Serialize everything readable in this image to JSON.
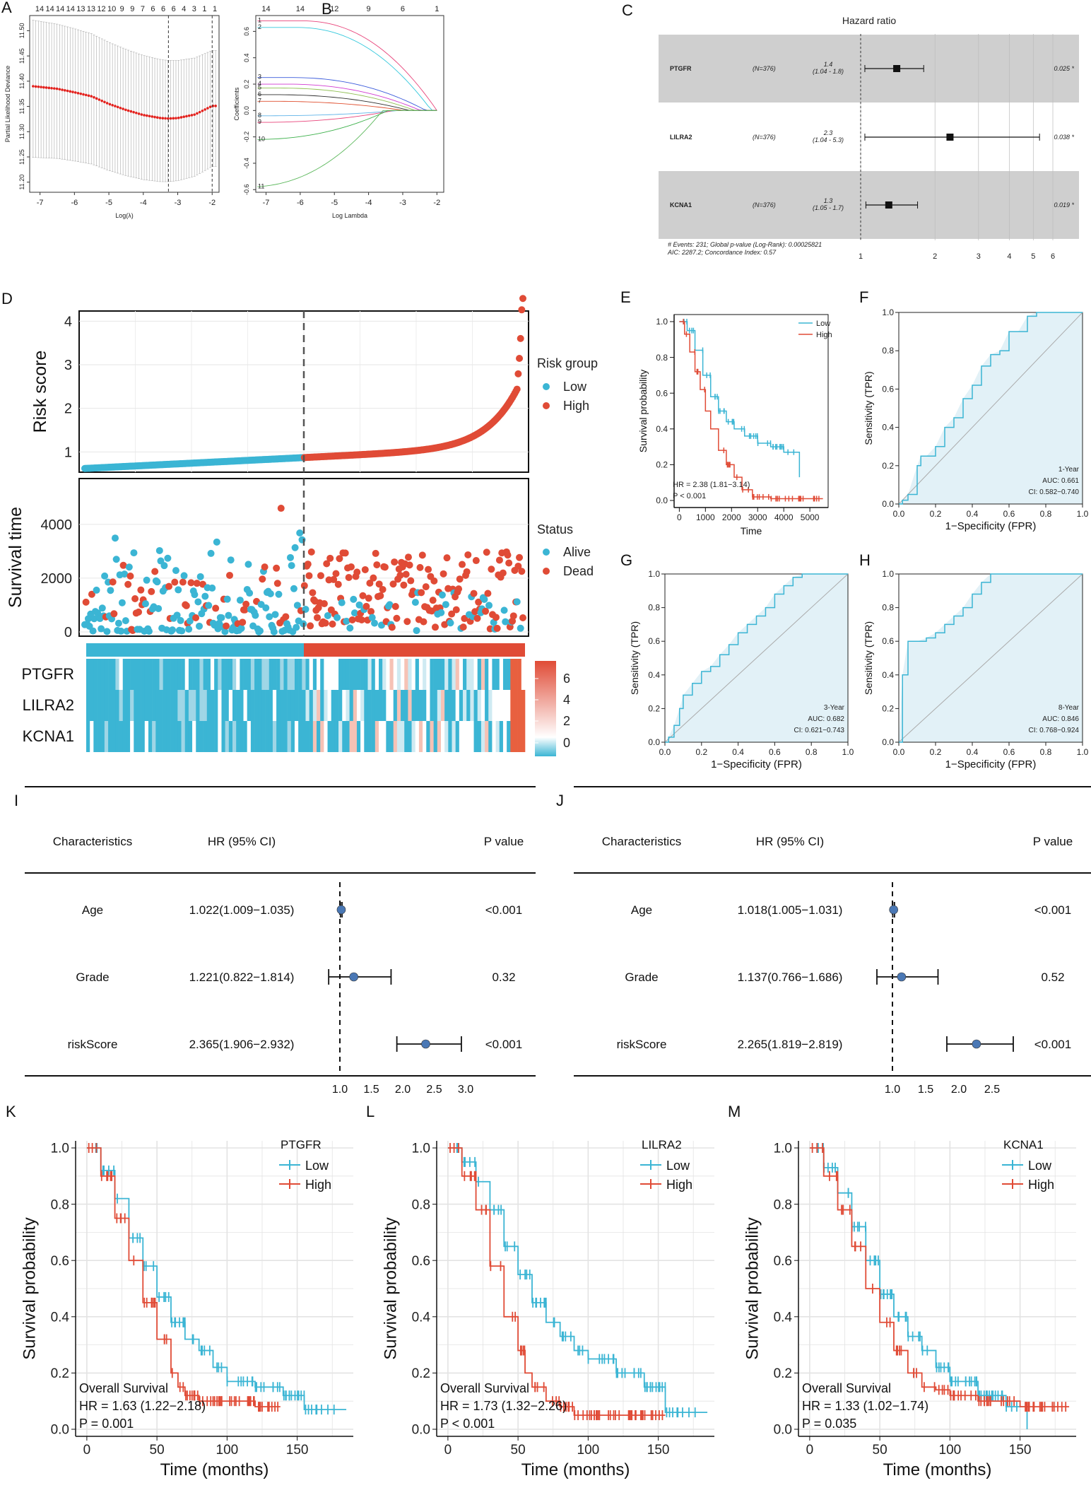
{
  "panels": {
    "A": "A",
    "B": "B",
    "C": "C",
    "D": "D",
    "E": "E",
    "F": "F",
    "G": "G",
    "H": "H",
    "I": "I",
    "J": "J",
    "K": "K",
    "L": "L",
    "M": "M"
  },
  "colors": {
    "low": "#3bb5d4",
    "high": "#e04b36",
    "cv": "#e2201c",
    "forest": "#4a78b5"
  },
  "chart_data": [
    {
      "id": "A",
      "type": "line",
      "xlabel": "Log(λ)",
      "ylabel": "Partial Likelihood Deviance",
      "xlim": [
        -7.3,
        -1.8
      ],
      "ylim": [
        11.18,
        11.53
      ],
      "xticks": [
        "-7",
        "-6",
        "-5",
        "-4",
        "-3",
        "-2"
      ],
      "yticks": [
        "11.20",
        "11.25",
        "11.30",
        "11.35",
        "11.40",
        "11.45",
        "11.50"
      ],
      "top_counts": [
        "14",
        "14",
        "14",
        "14",
        "13",
        "13",
        "12",
        "10",
        "9",
        "9",
        "7",
        "6",
        "6",
        "6",
        "4",
        "3",
        "1",
        "1"
      ],
      "lambda_min": -3.27,
      "lambda_1se": -2.0,
      "x": [
        -7.2,
        -6.5,
        -6.0,
        -5.5,
        -5.0,
        -4.5,
        -4.0,
        -3.5,
        -3.27,
        -3.0,
        -2.5,
        -2.0
      ],
      "y": [
        11.39,
        11.385,
        11.378,
        11.37,
        11.355,
        11.343,
        11.333,
        11.327,
        11.326,
        11.327,
        11.334,
        11.351
      ]
    },
    {
      "id": "B",
      "type": "line",
      "xlabel": "Log Lambda",
      "ylabel": "Coefficients",
      "xlim": [
        -7.3,
        -1.8
      ],
      "ylim": [
        -0.62,
        0.72
      ],
      "xticks": [
        "-7",
        "-6",
        "-5",
        "-4",
        "-3",
        "-2"
      ],
      "yticks": [
        "-0.6",
        "-0.4",
        "-0.2",
        "0.0",
        "0.2",
        "0.4",
        "0.6"
      ],
      "top_counts": [
        "14",
        "14",
        "12",
        "9",
        "6",
        "1"
      ],
      "series": [
        {
          "name": "1",
          "start": 0.68,
          "end": 0.0,
          "color": "#e8437a"
        },
        {
          "name": "2",
          "start": 0.63,
          "end": 0.0,
          "color": "#33c8dc"
        },
        {
          "name": "3",
          "start": 0.25,
          "end": 0.0,
          "color": "#3b5bdb"
        },
        {
          "name": "4",
          "start": 0.2,
          "end": 0.0,
          "color": "#d13ad1"
        },
        {
          "name": "5",
          "start": 0.17,
          "end": 0.0,
          "color": "#8fbf52"
        },
        {
          "name": "6",
          "start": 0.12,
          "end": 0.0,
          "color": "#2e2e2e"
        },
        {
          "name": "7",
          "start": 0.07,
          "end": 0.0,
          "color": "#e05030"
        },
        {
          "name": "8",
          "start": -0.04,
          "end": 0.0,
          "color": "#5fb3e8"
        },
        {
          "name": "9",
          "start": -0.09,
          "end": 0.0,
          "color": "#e8437a"
        },
        {
          "name": "10",
          "start": -0.22,
          "end": 0.0,
          "color": "#3cb04a"
        },
        {
          "name": "11",
          "start": -0.58,
          "end": 0.0,
          "color": "#5cb85c"
        }
      ]
    },
    {
      "id": "C",
      "type": "forest",
      "title": "Hazard ratio",
      "rows": [
        {
          "name": "PTGFR",
          "n": "(N=376)",
          "hr": "1.4",
          "ci": "(1.04 - 1.8)",
          "p": "0.025 *",
          "est": 1.4,
          "lo": 1.04,
          "hi": 1.8
        },
        {
          "name": "LILRA2",
          "n": "(N=376)",
          "hr": "2.3",
          "ci": "(1.04 - 5.3)",
          "p": "0.038 *",
          "est": 2.3,
          "lo": 1.04,
          "hi": 5.3
        },
        {
          "name": "KCNA1",
          "n": "(N=376)",
          "hr": "1.3",
          "ci": "(1.05 - 1.7)",
          "p": "0.019 *",
          "est": 1.3,
          "lo": 1.05,
          "hi": 1.7
        }
      ],
      "footer1": "# Events: 231; Global p-value (Log-Rank): 0.00025821",
      "footer2": "AIC: 2287.2; Concordance Index: 0.57",
      "xticks": [
        "1",
        "2",
        "3",
        "4",
        "5",
        "6"
      ]
    },
    {
      "id": "D",
      "type": "scatter",
      "ylabel_top": "Risk score",
      "ylabel_mid": "Survival time",
      "legend_top_title": "Risk group",
      "legend_top": [
        "Low",
        "High"
      ],
      "legend_mid_title": "Status",
      "legend_mid": [
        "Alive",
        "Dead"
      ],
      "risk_yticks": [
        "1",
        "2",
        "3",
        "4"
      ],
      "time_yticks": [
        "0",
        "2000",
        "4000"
      ],
      "genes": [
        "PTGFR",
        "LILRA2",
        "KCNA1"
      ],
      "scale_ticks": [
        "6",
        "4",
        "2",
        "0"
      ],
      "n_low": 188,
      "n_high": 188
    },
    {
      "id": "E",
      "type": "line",
      "xlabel": "Time",
      "ylabel": "Survival probability",
      "legend": [
        "Low",
        "High"
      ],
      "hr_text": "HR = 2.38 (1.81−3.14)",
      "p_text": "P < 0.001",
      "xticks": [
        "0",
        "1000",
        "2000",
        "3000",
        "4000",
        "5000"
      ],
      "yticks": [
        "0.0",
        "0.2",
        "0.4",
        "0.6",
        "0.8",
        "1.0"
      ],
      "low": {
        "x": [
          0,
          300,
          600,
          900,
          1200,
          1500,
          1800,
          2100,
          2500,
          3000,
          3500,
          4000,
          4600
        ],
        "y": [
          1.0,
          0.95,
          0.84,
          0.7,
          0.58,
          0.5,
          0.44,
          0.4,
          0.36,
          0.32,
          0.3,
          0.27,
          0.13
        ]
      },
      "high": {
        "x": [
          0,
          200,
          400,
          600,
          800,
          1000,
          1200,
          1500,
          1800,
          2100,
          2400,
          2800,
          3500,
          5500
        ],
        "y": [
          1.0,
          0.93,
          0.83,
          0.72,
          0.62,
          0.5,
          0.4,
          0.28,
          0.2,
          0.13,
          0.06,
          0.02,
          0.01,
          0.01
        ]
      }
    },
    {
      "id": "F",
      "type": "roc",
      "label": "1-Year",
      "auc": "AUC: 0.661",
      "ci": "CI: 0.582−0.740",
      "xlabel": "1−Specificity (FPR)",
      "ylabel": "Sensitivity (TPR)",
      "ticks": [
        "0.0",
        "0.2",
        "0.4",
        "0.6",
        "0.8",
        "1.0"
      ],
      "fpr": [
        0,
        0.02,
        0.05,
        0.1,
        0.12,
        0.15,
        0.2,
        0.25,
        0.3,
        0.35,
        0.4,
        0.45,
        0.5,
        0.55,
        0.6,
        0.65,
        0.7,
        0.75,
        0.8,
        1.0
      ],
      "tpr": [
        0,
        0.02,
        0.05,
        0.2,
        0.25,
        0.25,
        0.3,
        0.4,
        0.45,
        0.55,
        0.62,
        0.72,
        0.78,
        0.8,
        0.9,
        0.9,
        0.98,
        1.0,
        1.0,
        1.0
      ]
    },
    {
      "id": "G",
      "type": "roc",
      "label": "3-Year",
      "auc": "AUC: 0.682",
      "ci": "CI: 0.621−0.743",
      "xlabel": "1−Specificity (FPR)",
      "ylabel": "Sensitivity (TPR)",
      "ticks": [
        "0.0",
        "0.2",
        "0.4",
        "0.6",
        "0.8",
        "1.0"
      ],
      "fpr": [
        0,
        0.02,
        0.05,
        0.08,
        0.1,
        0.15,
        0.2,
        0.25,
        0.3,
        0.35,
        0.4,
        0.45,
        0.5,
        0.55,
        0.6,
        0.65,
        0.7,
        0.75,
        0.8,
        1.0
      ],
      "tpr": [
        0,
        0.03,
        0.1,
        0.2,
        0.28,
        0.35,
        0.42,
        0.45,
        0.52,
        0.58,
        0.65,
        0.7,
        0.75,
        0.8,
        0.88,
        0.93,
        0.98,
        1.0,
        1.0,
        1.0
      ]
    },
    {
      "id": "H",
      "type": "roc",
      "label": "8-Year",
      "auc": "AUC: 0.846",
      "ci": "CI: 0.768−0.924",
      "xlabel": "1−Specificity (FPR)",
      "ylabel": "Sensitivity (TPR)",
      "ticks": [
        "0.0",
        "0.2",
        "0.4",
        "0.6",
        "0.8",
        "1.0"
      ],
      "fpr": [
        0,
        0.02,
        0.05,
        0.1,
        0.15,
        0.2,
        0.25,
        0.3,
        0.35,
        0.4,
        0.45,
        0.5,
        0.6,
        1.0
      ],
      "tpr": [
        0,
        0.4,
        0.6,
        0.6,
        0.62,
        0.65,
        0.7,
        0.75,
        0.8,
        0.88,
        0.95,
        1.0,
        1.0,
        1.0
      ]
    },
    {
      "id": "I",
      "type": "forest",
      "headers": [
        "Characteristics",
        "HR (95% CI)",
        "P value"
      ],
      "rows": [
        {
          "name": "Age",
          "hr": "1.022(1.009−1.035)",
          "p": "<0.001",
          "est": 1.022,
          "lo": 1.009,
          "hi": 1.035
        },
        {
          "name": "Grade",
          "hr": "1.221(0.822−1.814)",
          "p": "0.32",
          "est": 1.221,
          "lo": 0.822,
          "hi": 1.814
        },
        {
          "name": "riskScore",
          "hr": "2.365(1.906−2.932)",
          "p": "<0.001",
          "est": 2.365,
          "lo": 1.906,
          "hi": 2.932
        }
      ],
      "xticks": [
        "1.0",
        "1.5",
        "2.0",
        "2.5",
        "3.0"
      ],
      "xvals": [
        1.0,
        1.5,
        2.0,
        2.5,
        3.0
      ]
    },
    {
      "id": "J",
      "type": "forest",
      "headers": [
        "Characteristics",
        "HR (95% CI)",
        "P value"
      ],
      "rows": [
        {
          "name": "Age",
          "hr": "1.018(1.005−1.031)",
          "p": "<0.001",
          "est": 1.018,
          "lo": 1.005,
          "hi": 1.031
        },
        {
          "name": "Grade",
          "hr": "1.137(0.766−1.686)",
          "p": "0.52",
          "est": 1.137,
          "lo": 0.766,
          "hi": 1.686
        },
        {
          "name": "riskScore",
          "hr": "2.265(1.819−2.819)",
          "p": "<0.001",
          "est": 2.265,
          "lo": 1.819,
          "hi": 2.819
        }
      ],
      "xticks": [
        "1.0",
        "1.5",
        "2.0",
        "2.5"
      ],
      "xvals": [
        1.0,
        1.5,
        2.0,
        2.5
      ]
    },
    {
      "id": "K",
      "type": "line",
      "gene": "PTGFR",
      "legend": [
        "Low",
        "High"
      ],
      "xlabel": "Time (months)",
      "ylabel": "Survival probability",
      "os": "Overall Survival",
      "hr_text": "HR = 1.63 (1.22−2.18)",
      "p_text": "P = 0.001",
      "xticks": [
        "0",
        "50",
        "100",
        "150"
      ],
      "yticks": [
        "0.0",
        "0.2",
        "0.4",
        "0.6",
        "0.8",
        "1.0"
      ],
      "low": {
        "x": [
          0,
          10,
          20,
          30,
          40,
          50,
          60,
          70,
          80,
          90,
          100,
          120,
          140,
          155,
          185
        ],
        "y": [
          1.0,
          0.92,
          0.82,
          0.68,
          0.58,
          0.47,
          0.38,
          0.32,
          0.28,
          0.22,
          0.17,
          0.15,
          0.12,
          0.07,
          0.07
        ]
      },
      "high": {
        "x": [
          0,
          10,
          20,
          30,
          40,
          50,
          60,
          65,
          70,
          80,
          100,
          120,
          138
        ],
        "y": [
          1.0,
          0.9,
          0.75,
          0.6,
          0.45,
          0.32,
          0.2,
          0.15,
          0.12,
          0.1,
          0.1,
          0.08,
          0.08
        ]
      }
    },
    {
      "id": "L",
      "type": "line",
      "gene": "LILRA2",
      "legend": [
        "Low",
        "High"
      ],
      "xlabel": "Time (months)",
      "ylabel": "Survival probability",
      "os": "Overall Survival",
      "hr_text": "HR = 1.73 (1.32−2.26)",
      "p_text": "P < 0.001",
      "xticks": [
        "0",
        "50",
        "100",
        "150"
      ],
      "yticks": [
        "0.0",
        "0.2",
        "0.4",
        "0.6",
        "0.8",
        "1.0"
      ],
      "low": {
        "x": [
          0,
          10,
          20,
          30,
          40,
          50,
          60,
          70,
          80,
          90,
          100,
          120,
          140,
          155,
          185
        ],
        "y": [
          1.0,
          0.95,
          0.88,
          0.78,
          0.65,
          0.55,
          0.45,
          0.38,
          0.33,
          0.28,
          0.25,
          0.2,
          0.15,
          0.06,
          0.06
        ]
      },
      "high": {
        "x": [
          0,
          10,
          20,
          30,
          40,
          50,
          55,
          60,
          70,
          80,
          90,
          120,
          155
        ],
        "y": [
          1.0,
          0.9,
          0.78,
          0.58,
          0.4,
          0.28,
          0.2,
          0.15,
          0.1,
          0.08,
          0.05,
          0.05,
          0.05
        ]
      }
    },
    {
      "id": "M",
      "type": "line",
      "gene": "KCNA1",
      "legend": [
        "Low",
        "High"
      ],
      "xlabel": "Time (months)",
      "ylabel": "Survival probability",
      "os": "Overall Survival",
      "hr_text": "HR = 1.33 (1.02−1.74)",
      "p_text": "P = 0.035",
      "xticks": [
        "0",
        "50",
        "100",
        "150"
      ],
      "yticks": [
        "0.0",
        "0.2",
        "0.4",
        "0.6",
        "0.8",
        "1.0"
      ],
      "low": {
        "x": [
          0,
          10,
          20,
          30,
          40,
          50,
          60,
          70,
          80,
          90,
          100,
          120,
          140,
          155
        ],
        "y": [
          1.0,
          0.93,
          0.84,
          0.72,
          0.6,
          0.48,
          0.4,
          0.33,
          0.28,
          0.22,
          0.17,
          0.12,
          0.08,
          0.0
        ]
      },
      "high": {
        "x": [
          0,
          10,
          20,
          30,
          40,
          50,
          60,
          70,
          80,
          90,
          100,
          120,
          150,
          185
        ],
        "y": [
          1.0,
          0.9,
          0.78,
          0.65,
          0.5,
          0.38,
          0.28,
          0.2,
          0.15,
          0.14,
          0.12,
          0.1,
          0.08,
          0.08
        ]
      }
    }
  ]
}
